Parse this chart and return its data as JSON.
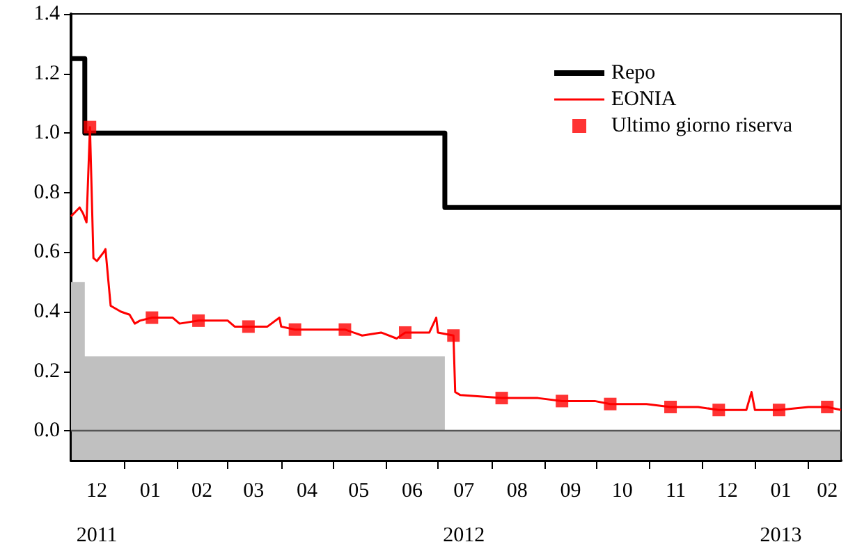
{
  "chart_data": {
    "type": "line",
    "xlim": [
      "2011-12-01",
      "2013-02-20"
    ],
    "xticks": [
      {
        "value": "2011-12-16",
        "label": "12\n2011"
      },
      {
        "value": "2012-01-01",
        "label": null
      },
      {
        "value": "2012-01-16",
        "label": "01"
      },
      {
        "value": "2012-02-01",
        "label": null
      },
      {
        "value": "2012-02-15",
        "label": "02"
      },
      {
        "value": "2012-03-01",
        "label": null
      },
      {
        "value": "2012-03-16",
        "label": "03"
      },
      {
        "value": "2012-04-01",
        "label": null
      },
      {
        "value": "2012-04-16",
        "label": "04"
      },
      {
        "value": "2012-05-01",
        "label": null
      },
      {
        "value": "2012-05-16",
        "label": "05"
      },
      {
        "value": "2012-06-01",
        "label": null
      },
      {
        "value": "2012-06-16",
        "label": "06"
      },
      {
        "value": "2012-07-01",
        "label": null
      },
      {
        "value": "2012-07-16",
        "label": "07\n2012"
      },
      {
        "value": "2012-08-01",
        "label": null
      },
      {
        "value": "2012-08-16",
        "label": "08"
      },
      {
        "value": "2012-09-01",
        "label": null
      },
      {
        "value": "2012-09-16",
        "label": "09"
      },
      {
        "value": "2012-10-01",
        "label": null
      },
      {
        "value": "2012-10-16",
        "label": "10"
      },
      {
        "value": "2012-11-01",
        "label": null
      },
      {
        "value": "2012-11-16",
        "label": "11"
      },
      {
        "value": "2012-12-01",
        "label": null
      },
      {
        "value": "2012-12-16",
        "label": "12"
      },
      {
        "value": "2013-01-01",
        "label": null
      },
      {
        "value": "2013-01-16",
        "label": "01\n2013"
      },
      {
        "value": "2013-02-01",
        "label": null
      },
      {
        "value": "2013-02-12",
        "label": "02"
      }
    ],
    "ylim": [
      -0.1,
      1.4
    ],
    "yticks": [
      {
        "value": 0,
        "label": "0.0"
      },
      {
        "value": 0.2,
        "label": "0.2"
      },
      {
        "value": 0.4,
        "label": "0.4"
      },
      {
        "value": 0.6,
        "label": "0.6"
      },
      {
        "value": 0.8,
        "label": "0.8"
      },
      {
        "value": 1,
        "label": "1.0"
      },
      {
        "value": 1.2,
        "label": "1.2"
      },
      {
        "value": 1.4,
        "label": "1.4"
      }
    ],
    "grid": false,
    "legend": "top right",
    "ref_lines": [
      {
        "axis": "y",
        "value": 0,
        "color": "#555555"
      }
    ],
    "bands": [
      {
        "axis": "y",
        "from": -0.1,
        "to": 0,
        "color": "#c0c0c0"
      }
    ],
    "series": [
      {
        "type": "area",
        "color": "#c0c0c0",
        "x": [
          "2011-12-01",
          "2011-12-09",
          "2011-12-09",
          "2012-07-05",
          "2012-07-05",
          "2013-02-20"
        ],
        "values": [
          0.5,
          0.5,
          0.25,
          0.25,
          0,
          0
        ]
      },
      {
        "type": "step",
        "name": "Repo",
        "color": "#000000",
        "x": [
          "2011-12-01",
          "2011-12-09",
          "2012-07-05",
          "2013-02-20"
        ],
        "values": [
          1.25,
          1.0,
          0.75,
          0.75
        ]
      },
      {
        "name": "EONIA",
        "color": "#ff0000",
        "marker": "none",
        "x": [
          "2011-12-01",
          "2011-12-06",
          "2011-12-08",
          "2011-12-10",
          "2011-12-12",
          "2011-12-14",
          "2011-12-16",
          "2011-12-20",
          "2011-12-21",
          "2011-12-24",
          "2011-12-30",
          "2012-01-04",
          "2012-01-07",
          "2012-01-10",
          "2012-01-17",
          "2012-01-29",
          "2012-02-02",
          "2012-02-13",
          "2012-03-01",
          "2012-03-05",
          "2012-03-13",
          "2012-03-24",
          "2012-03-31",
          "2012-04-01",
          "2012-04-09",
          "2012-04-27",
          "2012-05-08",
          "2012-05-18",
          "2012-05-29",
          "2012-06-07",
          "2012-06-12",
          "2012-06-26",
          "2012-06-30",
          "2012-07-01",
          "2012-07-10",
          "2012-07-11",
          "2012-07-14",
          "2012-08-07",
          "2012-08-28",
          "2012-09-11",
          "2012-09-30",
          "2012-10-09",
          "2012-10-30",
          "2012-11-13",
          "2012-11-29",
          "2012-12-11",
          "2012-12-27",
          "2012-12-30",
          "2013-01-01",
          "2013-01-15",
          "2013-02-01",
          "2013-02-12",
          "2013-02-20"
        ],
        "values": [
          0.72,
          0.75,
          0.73,
          0.7,
          1.02,
          0.58,
          0.57,
          0.6,
          0.61,
          0.42,
          0.4,
          0.39,
          0.36,
          0.37,
          0.38,
          0.38,
          0.36,
          0.37,
          0.37,
          0.35,
          0.35,
          0.35,
          0.38,
          0.35,
          0.34,
          0.34,
          0.34,
          0.32,
          0.33,
          0.31,
          0.33,
          0.33,
          0.38,
          0.33,
          0.32,
          0.13,
          0.12,
          0.11,
          0.11,
          0.1,
          0.1,
          0.09,
          0.09,
          0.08,
          0.08,
          0.07,
          0.07,
          0.13,
          0.07,
          0.07,
          0.08,
          0.08,
          0.07
        ]
      },
      {
        "type": "scatter",
        "name": "Ultimo giorno riserva",
        "color": "#ff0000",
        "marker": "square",
        "x": [
          "2011-12-12",
          "2012-01-17",
          "2012-02-13",
          "2012-03-13",
          "2012-04-09",
          "2012-05-08",
          "2012-06-12",
          "2012-07-10",
          "2012-08-07",
          "2012-09-11",
          "2012-10-09",
          "2012-11-13",
          "2012-12-11",
          "2013-01-15",
          "2013-02-12"
        ],
        "values": [
          1.02,
          0.38,
          0.37,
          0.35,
          0.34,
          0.34,
          0.33,
          0.32,
          0.11,
          0.1,
          0.09,
          0.08,
          0.07,
          0.07,
          0.08
        ]
      }
    ]
  }
}
